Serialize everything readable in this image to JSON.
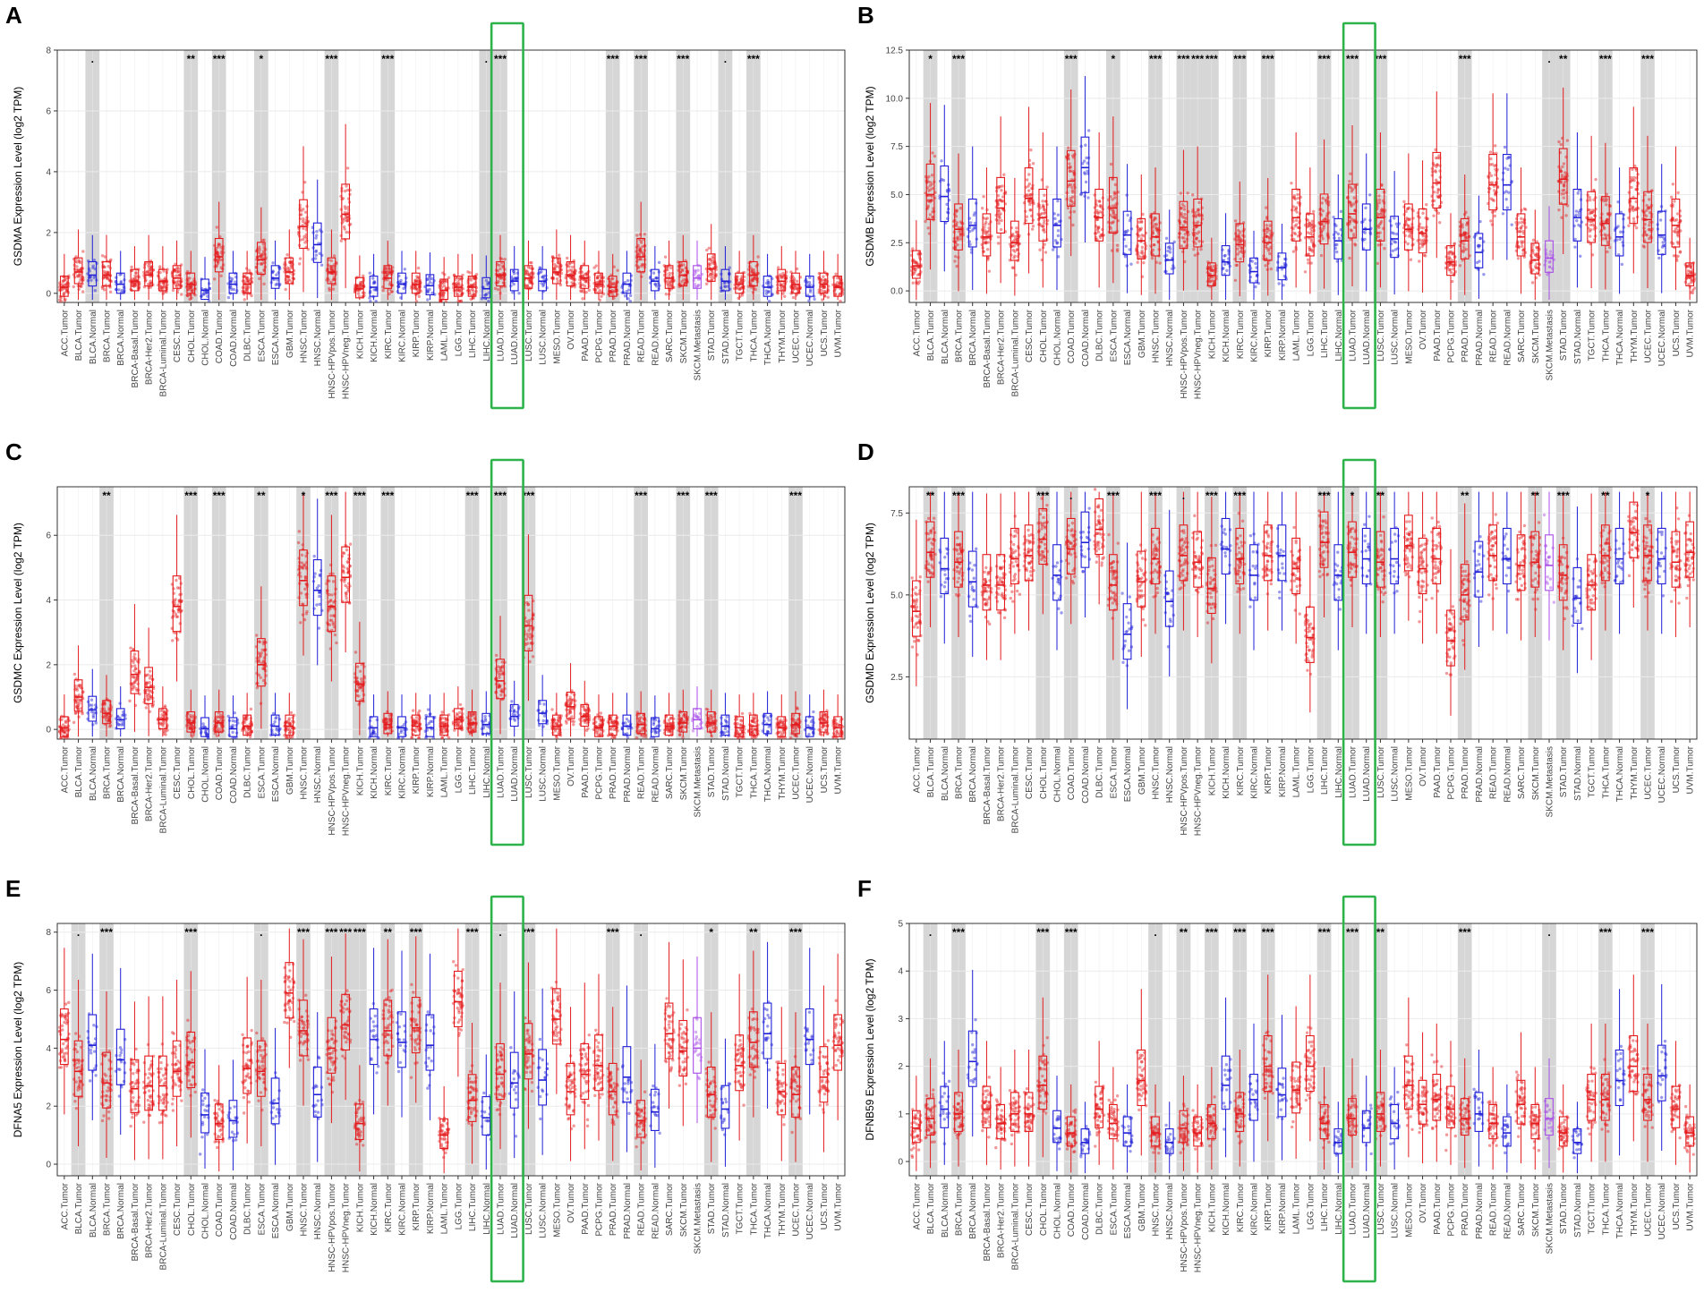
{
  "colors": {
    "tumor": "#e41a1c",
    "normal": "#1f1fd8",
    "metastasis": "#a84de8",
    "highlight": "#2db34a",
    "shade": "#d6d6d6",
    "grid": "#ebebeb"
  },
  "chart_data": [
    {
      "type": "box",
      "panel": "A",
      "ylabel": "GSDMA Expression Level (log2 TPM)",
      "ylim": [
        -0.3,
        8
      ],
      "yticks": [
        0,
        2,
        4,
        6,
        8
      ],
      "ytick_labels": [
        "0",
        "2",
        "4",
        "6",
        "8"
      ],
      "categories": [
        "ACC.Tumor",
        "BLCA.Tumor",
        "BLCA.Normal",
        "BRCA.Tumor",
        "BRCA.Normal",
        "BRCA-Basal.Tumor",
        "BRCA-Her2.Tumor",
        "BRCA-Luminal.Tumor",
        "CESC.Tumor",
        "CHOL.Tumor",
        "CHOL.Normal",
        "COAD.Tumor",
        "COAD.Normal",
        "DLBC.Tumor",
        "ESCA.Tumor",
        "ESCA.Normal",
        "GBM.Tumor",
        "HNSC.Tumor",
        "HNSC.Normal",
        "HNSC-HPVpos.Tumor",
        "HNSC-HPVneg.Tumor",
        "KICH.Tumor",
        "KICH.Normal",
        "KIRC.Tumor",
        "KIRC.Normal",
        "KIRP.Tumor",
        "KIRP.Normal",
        "LAML.Tumor",
        "LGG.Tumor",
        "LIHC.Tumor",
        "LIHC.Normal",
        "LUAD.Tumor",
        "LUAD.Normal",
        "LUSC.Tumor",
        "LUSC.Normal",
        "MESO.Tumor",
        "OV.Tumor",
        "PAAD.Tumor",
        "PCPG.Tumor",
        "PRAD.Tumor",
        "PRAD.Normal",
        "READ.Tumor",
        "READ.Normal",
        "SARC.Tumor",
        "SKCM.Tumor",
        "SKCM.Metastasis",
        "STAD.Tumor",
        "STAD.Normal",
        "TGCT.Tumor",
        "THCA.Tumor",
        "THCA.Normal",
        "THYM.Tumor",
        "UCEC.Tumor",
        "UCEC.Normal",
        "UCS.Tumor",
        "UVM.Tumor"
      ],
      "medians": [
        0.2,
        0.7,
        0.6,
        0.6,
        0.3,
        0.4,
        0.6,
        0.4,
        0.5,
        0.3,
        0.1,
        1.2,
        0.3,
        0.3,
        1.1,
        0.5,
        0.7,
        2.2,
        1.6,
        0.7,
        2.6,
        0.15,
        0.2,
        0.5,
        0.3,
        0.3,
        0.25,
        0.1,
        0.2,
        0.2,
        0.15,
        0.6,
        0.4,
        0.5,
        0.4,
        0.7,
        0.6,
        0.5,
        0.3,
        0.2,
        0.3,
        1.2,
        0.4,
        0.5,
        0.6,
        0.5,
        0.8,
        0.4,
        0.3,
        0.6,
        0.2,
        0.4,
        0.3,
        0.2,
        0.3,
        0.2
      ],
      "stars": [
        "",
        "",
        ".",
        "",
        "",
        "",
        "",
        "",
        "",
        "**",
        "",
        "***",
        "",
        "",
        "*",
        "",
        "",
        "",
        "",
        "***",
        "",
        "",
        "",
        "***",
        "",
        "",
        "",
        "",
        "",
        "",
        ".",
        "***",
        "",
        "",
        "",
        "",
        "",
        "",
        "",
        "***",
        "",
        "***",
        "",
        "",
        "***",
        "",
        "",
        ".",
        "",
        "***",
        "",
        "",
        "",
        "",
        "",
        ""
      ],
      "highlight": [
        31,
        32
      ]
    },
    {
      "type": "box",
      "panel": "B",
      "ylabel": "GSDMB Expression Level (log2 TPM)",
      "ylim": [
        -0.6,
        12.5
      ],
      "yticks": [
        0,
        2.5,
        5,
        7.5,
        10,
        12.5
      ],
      "ytick_labels": [
        "0.0",
        "2.5",
        "5.0",
        "7.5",
        "10.0",
        "12.5"
      ],
      "categories": [
        "ACC.Tumor",
        "BLCA.Tumor",
        "BLCA.Normal",
        "BRCA.Tumor",
        "BRCA.Normal",
        "BRCA-Basal.Tumor",
        "BRCA-Her2.Tumor",
        "BRCA-Luminal.Tumor",
        "CESC.Tumor",
        "CHOL.Tumor",
        "CHOL.Normal",
        "COAD.Tumor",
        "COAD.Normal",
        "DLBC.Tumor",
        "ESCA.Tumor",
        "ESCA.Normal",
        "GBM.Tumor",
        "HNSC.Tumor",
        "HNSC.Normal",
        "HNSC-HPVpos.Tumor",
        "HNSC-HPVneg.Tumor",
        "KICH.Tumor",
        "KICH.Normal",
        "KIRC.Tumor",
        "KIRC.Normal",
        "KIRP.Tumor",
        "KIRP.Normal",
        "LAML.Tumor",
        "LGG.Tumor",
        "LIHC.Tumor",
        "LIHC.Normal",
        "LUAD.Tumor",
        "LUAD.Normal",
        "LUSC.Tumor",
        "LUSC.Normal",
        "MESO.Tumor",
        "OV.Tumor",
        "PAAD.Tumor",
        "PCPG.Tumor",
        "PRAD.Tumor",
        "PRAD.Normal",
        "READ.Tumor",
        "READ.Normal",
        "SARC.Tumor",
        "SKCM.Tumor",
        "SKCM.Metastasis",
        "STAD.Tumor",
        "STAD.Normal",
        "TGCT.Tumor",
        "THCA.Tumor",
        "THCA.Normal",
        "THYM.Tumor",
        "UCEC.Tumor",
        "UCEC.Normal",
        "UCS.Tumor",
        "UVM.Tumor"
      ],
      "medians": [
        1.3,
        5.0,
        4.9,
        3.2,
        3.4,
        2.8,
        4.3,
        2.5,
        4.8,
        3.8,
        3.4,
        5.7,
        6.4,
        3.8,
        4.3,
        2.9,
        2.6,
        2.8,
        1.6,
        3.3,
        3.4,
        0.8,
        1.5,
        2.4,
        1.0,
        2.5,
        1.2,
        3.8,
        2.8,
        3.6,
        2.6,
        4.0,
        3.2,
        3.8,
        2.7,
        3.2,
        3.0,
        5.6,
        1.5,
        2.6,
        2.0,
        5.5,
        5.5,
        2.8,
        1.6,
        1.7,
        5.8,
        3.8,
        3.7,
        3.5,
        2.8,
        4.8,
        3.7,
        2.9,
        3.4,
        0.8
      ],
      "stars": [
        "",
        "*",
        "",
        "***",
        "",
        "",
        "",
        "",
        "",
        "",
        "",
        "***",
        "",
        "",
        "*",
        "",
        "",
        "***",
        "",
        "***",
        "***",
        "***",
        "",
        "***",
        "",
        "***",
        "",
        "",
        "",
        "***",
        "",
        "***",
        "",
        "***",
        "",
        "",
        "",
        "",
        "",
        "***",
        "",
        "",
        "",
        "",
        "",
        ".",
        "**",
        "",
        "",
        "***",
        "",
        "",
        "***",
        "",
        "",
        ""
      ],
      "highlight": [
        31,
        32
      ]
    },
    {
      "type": "box",
      "panel": "C",
      "ylabel": "GSDMC Expression Level (log2 TPM)",
      "ylim": [
        -0.3,
        7.5
      ],
      "yticks": [
        0,
        2,
        4,
        6
      ],
      "ytick_labels": [
        "0",
        "2",
        "4",
        "6"
      ],
      "categories": [
        "ACC.Tumor",
        "BLCA.Tumor",
        "BLCA.Normal",
        "BRCA.Tumor",
        "BRCA.Normal",
        "BRCA-Basal.Tumor",
        "BRCA-Her2.Tumor",
        "BRCA-Luminal.Tumor",
        "CESC.Tumor",
        "CHOL.Tumor",
        "CHOL.Normal",
        "COAD.Tumor",
        "COAD.Normal",
        "DLBC.Tumor",
        "ESCA.Tumor",
        "ESCA.Normal",
        "GBM.Tumor",
        "HNSC.Tumor",
        "HNSC.Normal",
        "HNSC-HPVpos.Tumor",
        "HNSC-HPVneg.Tumor",
        "KICH.Tumor",
        "KICH.Normal",
        "KIRC.Tumor",
        "KIRC.Normal",
        "KIRP.Tumor",
        "KIRP.Normal",
        "LAML.Tumor",
        "LGG.Tumor",
        "LIHC.Tumor",
        "LIHC.Normal",
        "LUAD.Tumor",
        "LUAD.Normal",
        "LUSC.Tumor",
        "LUSC.Normal",
        "MESO.Tumor",
        "OV.Tumor",
        "PAAD.Tumor",
        "PCPG.Tumor",
        "PRAD.Tumor",
        "PRAD.Normal",
        "READ.Tumor",
        "READ.Normal",
        "SARC.Tumor",
        "SKCM.Tumor",
        "SKCM.Metastasis",
        "STAD.Tumor",
        "STAD.Normal",
        "TGCT.Tumor",
        "THCA.Tumor",
        "THCA.Normal",
        "THYM.Tumor",
        "UCEC.Tumor",
        "UCEC.Normal",
        "UCS.Tumor",
        "UVM.Tumor"
      ],
      "medians": [
        0.05,
        1.0,
        0.6,
        0.5,
        0.3,
        1.7,
        1.3,
        0.3,
        3.8,
        0.2,
        0.02,
        0.2,
        0.02,
        0.1,
        2.0,
        0.1,
        0.1,
        4.6,
        4.3,
        3.8,
        4.7,
        1.4,
        0.05,
        0.15,
        0.05,
        0.1,
        0.05,
        0.1,
        0.3,
        0.2,
        0.15,
        1.5,
        0.4,
        3.2,
        0.5,
        0.1,
        0.7,
        0.4,
        0.05,
        0.1,
        0.1,
        0.15,
        0.02,
        0.1,
        0.2,
        0.3,
        0.2,
        0.1,
        0.05,
        0.1,
        0.15,
        0.05,
        0.15,
        0.05,
        0.2,
        0.05
      ],
      "stars": [
        "",
        "",
        "",
        "**",
        "",
        "",
        "",
        "",
        "",
        "***",
        "",
        "***",
        "",
        "",
        "**",
        "",
        "",
        "*",
        "",
        "***",
        "",
        "***",
        "",
        "***",
        "",
        "",
        "",
        "",
        "",
        "***",
        "",
        "***",
        "",
        "***",
        "",
        "",
        "",
        "",
        "",
        "",
        "",
        "***",
        "",
        "",
        "***",
        "",
        "***",
        "",
        "",
        "",
        "",
        "",
        "***",
        "",
        "",
        ""
      ],
      "highlight": [
        31,
        32
      ]
    },
    {
      "type": "box",
      "panel": "D",
      "ylabel": "GSDMD Expression Level (log2 TPM)",
      "ylim": [
        0.6,
        8.3
      ],
      "yticks": [
        2.5,
        5,
        7.5
      ],
      "ytick_labels": [
        "2.5",
        "5.0",
        "7.5"
      ],
      "categories": [
        "ACC.Tumor",
        "BLCA.Tumor",
        "BLCA.Normal",
        "BRCA.Tumor",
        "BRCA.Normal",
        "BRCA-Basal.Tumor",
        "BRCA-Her2.Tumor",
        "BRCA-Luminal.Tumor",
        "CESC.Tumor",
        "CHOL.Tumor",
        "CHOL.Normal",
        "COAD.Tumor",
        "COAD.Normal",
        "DLBC.Tumor",
        "ESCA.Tumor",
        "ESCA.Normal",
        "GBM.Tumor",
        "HNSC.Tumor",
        "HNSC.Normal",
        "HNSC-HPVpos.Tumor",
        "HNSC-HPVneg.Tumor",
        "KICH.Tumor",
        "KICH.Normal",
        "KIRC.Tumor",
        "KIRC.Normal",
        "KIRP.Tumor",
        "KIRP.Normal",
        "LAML.Tumor",
        "LGG.Tumor",
        "LIHC.Tumor",
        "LIHC.Normal",
        "LUAD.Tumor",
        "LUAD.Normal",
        "LUSC.Tumor",
        "LUSC.Normal",
        "MESO.Tumor",
        "OV.Tumor",
        "PAAD.Tumor",
        "PCPG.Tumor",
        "PRAD.Tumor",
        "PRAD.Normal",
        "READ.Tumor",
        "READ.Normal",
        "SARC.Tumor",
        "SKCM.Tumor",
        "SKCM.Metastasis",
        "STAD.Tumor",
        "STAD.Normal",
        "TGCT.Tumor",
        "THCA.Tumor",
        "THCA.Normal",
        "THYM.Tumor",
        "UCEC.Tumor",
        "UCEC.Normal",
        "UCS.Tumor",
        "UVM.Tumor"
      ],
      "medians": [
        4.5,
        6.3,
        5.8,
        6.0,
        5.4,
        5.3,
        5.3,
        6.1,
        6.2,
        6.7,
        5.6,
        6.4,
        6.6,
        7.0,
        5.3,
        3.8,
        5.4,
        6.1,
        4.8,
        6.2,
        6.0,
        5.2,
        6.4,
        6.1,
        5.6,
        6.2,
        6.2,
        5.8,
        3.7,
        6.6,
        5.6,
        6.3,
        6.1,
        6.0,
        6.1,
        6.5,
        5.8,
        6.1,
        3.6,
        5.0,
        5.7,
        6.2,
        6.1,
        5.9,
        6.0,
        5.9,
        5.6,
        4.9,
        5.3,
        6.2,
        6.1,
        6.9,
        6.2,
        6.1,
        6.0,
        6.3
      ],
      "stars": [
        "",
        "**",
        "",
        "***",
        "",
        "",
        "",
        "",
        "",
        "***",
        "",
        ".",
        "",
        "",
        "***",
        "",
        "",
        "***",
        "",
        ".",
        "",
        "***",
        "",
        "***",
        "",
        "",
        "",
        "",
        "",
        "***",
        "",
        "*",
        "",
        "**",
        "",
        "",
        "",
        "",
        "",
        "**",
        "",
        "",
        "",
        "",
        "**",
        "",
        "***",
        "",
        "",
        "**",
        "",
        "",
        "*",
        "",
        "",
        ""
      ],
      "highlight": [
        31,
        32
      ]
    },
    {
      "type": "box",
      "panel": "E",
      "ylabel": "DFNA5 Expression Level (log2 TPM)",
      "ylim": [
        -0.4,
        8.3
      ],
      "yticks": [
        0,
        2,
        4,
        6,
        8
      ],
      "ytick_labels": [
        "0",
        "2",
        "4",
        "6",
        "8"
      ],
      "categories": [
        "ACC.Tumor",
        "BLCA.Tumor",
        "BLCA.Normal",
        "BRCA.Tumor",
        "BRCA.Normal",
        "BRCA-Basal.Tumor",
        "BRCA-Her2.Tumor",
        "BRCA-Luminal.Tumor",
        "CESC.Tumor",
        "CHOL.Tumor",
        "CHOL.Normal",
        "COAD.Tumor",
        "COAD.Normal",
        "DLBC.Tumor",
        "ESCA.Tumor",
        "ESCA.Normal",
        "GBM.Tumor",
        "HNSC.Tumor",
        "HNSC.Normal",
        "HNSC-HPVpos.Tumor",
        "HNSC-HPVneg.Tumor",
        "KICH.Tumor",
        "KICH.Normal",
        "KIRC.Tumor",
        "KIRC.Normal",
        "KIRP.Tumor",
        "KIRP.Normal",
        "LAML.Tumor",
        "LGG.Tumor",
        "LIHC.Tumor",
        "LIHC.Normal",
        "LUAD.Tumor",
        "LUAD.Normal",
        "LUSC.Tumor",
        "LUSC.Normal",
        "MESO.Tumor",
        "OV.Tumor",
        "PAAD.Tumor",
        "PCPG.Tumor",
        "PRAD.Tumor",
        "PRAD.Normal",
        "READ.Tumor",
        "READ.Normal",
        "SARC.Tumor",
        "SKCM.Tumor",
        "SKCM.Metastasis",
        "STAD.Tumor",
        "STAD.Normal",
        "TGCT.Tumor",
        "THCA.Tumor",
        "THCA.Normal",
        "THYM.Tumor",
        "UCEC.Tumor",
        "UCEC.Normal",
        "UCS.Tumor",
        "UVM.Tumor"
      ],
      "medians": [
        4.3,
        3.2,
        4.1,
        2.8,
        3.6,
        2.6,
        2.7,
        2.7,
        3.2,
        3.5,
        1.7,
        1.4,
        1.5,
        3.3,
        3.2,
        2.1,
        5.9,
        4.6,
        2.4,
        4.0,
        4.8,
        1.4,
        4.3,
        4.6,
        4.2,
        4.7,
        4.1,
        1.0,
        5.6,
        2.2,
        1.6,
        3.1,
        2.8,
        3.8,
        2.9,
        5.0,
        2.5,
        3.1,
        3.4,
        2.5,
        3.0,
        1.5,
        1.8,
        4.5,
        3.9,
        4.0,
        2.4,
        1.9,
        3.4,
        4.2,
        4.5,
        2.5,
        2.4,
        4.3,
        3.0,
        4.1
      ],
      "stars": [
        "",
        ".",
        "",
        "***",
        "",
        "",
        "",
        "",
        "",
        "***",
        "",
        "",
        "",
        "",
        ".",
        "",
        "",
        "***",
        "",
        "***",
        "***",
        "***",
        "",
        "**",
        "",
        "***",
        "",
        "",
        "",
        "***",
        "",
        ".",
        "",
        "***",
        "",
        "",
        "",
        "",
        "",
        "***",
        "",
        ".",
        "",
        "",
        "",
        "",
        "*",
        "",
        "",
        "**",
        "",
        "",
        "***",
        "",
        "",
        ""
      ],
      "highlight": [
        31,
        32
      ]
    },
    {
      "type": "box",
      "panel": "F",
      "ylabel": "DFNB59 Expression Level (log2 TPM)",
      "ylim": [
        -0.3,
        5
      ],
      "yticks": [
        0,
        1,
        2,
        3,
        4,
        5
      ],
      "ytick_labels": [
        "0",
        "1",
        "2",
        "3",
        "4",
        "5"
      ],
      "categories": [
        "ACC.Tumor",
        "BLCA.Tumor",
        "BLCA.Normal",
        "BRCA.Tumor",
        "BRCA.Normal",
        "BRCA-Basal.Tumor",
        "BRCA-Her2.Tumor",
        "BRCA-Luminal.Tumor",
        "CESC.Tumor",
        "CHOL.Tumor",
        "CHOL.Normal",
        "COAD.Tumor",
        "COAD.Normal",
        "DLBC.Tumor",
        "ESCA.Tumor",
        "ESCA.Normal",
        "GBM.Tumor",
        "HNSC.Tumor",
        "HNSC.Normal",
        "HNSC-HPVpos.Tumor",
        "HNSC-HPVneg.Tumor",
        "KICH.Tumor",
        "KICH.Normal",
        "KIRC.Tumor",
        "KIRC.Normal",
        "KIRP.Tumor",
        "KIRP.Normal",
        "LAML.Tumor",
        "LGG.Tumor",
        "LIHC.Tumor",
        "LIHC.Normal",
        "LUAD.Tumor",
        "LUAD.Normal",
        "LUSC.Tumor",
        "LUSC.Normal",
        "MESO.Tumor",
        "OV.Tumor",
        "PAAD.Tumor",
        "PCPG.Tumor",
        "PRAD.Tumor",
        "PRAD.Normal",
        "READ.Tumor",
        "READ.Normal",
        "SARC.Tumor",
        "SKCM.Tumor",
        "SKCM.Metastasis",
        "STAD.Tumor",
        "STAD.Normal",
        "TGCT.Tumor",
        "THCA.Tumor",
        "THCA.Normal",
        "THYM.Tumor",
        "UCEC.Tumor",
        "UCEC.Normal",
        "UCS.Tumor",
        "UVM.Tumor"
      ],
      "medians": [
        0.7,
        0.9,
        1.1,
        1.0,
        2.1,
        1.1,
        0.8,
        1.0,
        1.0,
        1.6,
        0.7,
        0.6,
        0.4,
        1.1,
        0.8,
        0.6,
        1.7,
        0.6,
        0.4,
        0.7,
        0.6,
        0.8,
        1.6,
        1.0,
        1.3,
        2.0,
        1.4,
        1.5,
        2.0,
        0.8,
        0.4,
        0.9,
        0.7,
        1.0,
        0.8,
        1.6,
        1.2,
        1.3,
        1.1,
        0.9,
        1.0,
        0.8,
        0.6,
        1.2,
        0.8,
        0.9,
        0.6,
        0.4,
        1.3,
        1.3,
        1.7,
        2.0,
        1.3,
        1.8,
        1.1,
        0.6
      ],
      "stars": [
        "",
        ".",
        "",
        "***",
        "",
        "",
        "",
        "",
        "",
        "***",
        "",
        "***",
        "",
        "",
        "",
        "",
        "",
        ".",
        "",
        "**",
        "",
        "***",
        "",
        "***",
        "",
        "***",
        "",
        "",
        "",
        "***",
        "",
        "***",
        "",
        "**",
        "",
        "",
        "",
        "",
        "",
        "***",
        "",
        "",
        "",
        "",
        "",
        ".",
        "",
        "",
        "",
        "***",
        "",
        "",
        "***",
        "",
        "",
        ""
      ],
      "highlight": [
        31,
        32
      ]
    }
  ]
}
